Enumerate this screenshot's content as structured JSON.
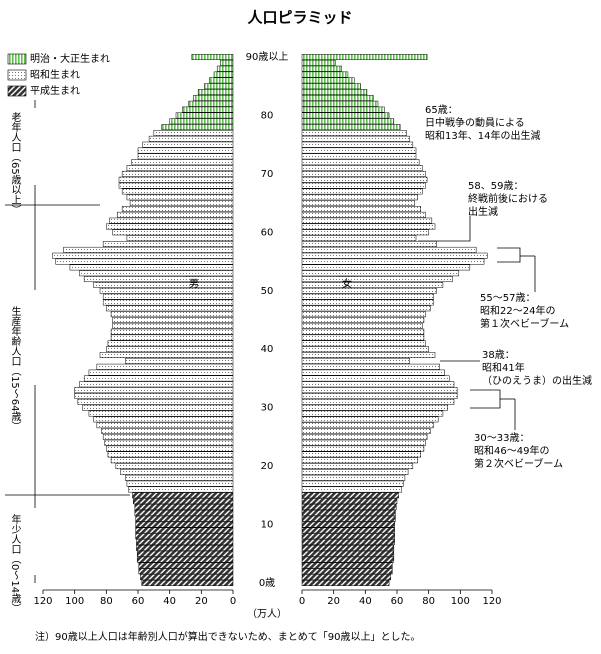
{
  "chart_data": {
    "type": "pyramid",
    "title": "人口ピラミッド",
    "categories": [
      "0歳",
      null,
      null,
      null,
      null,
      null,
      null,
      null,
      null,
      null,
      "10",
      null,
      null,
      null,
      null,
      null,
      null,
      null,
      null,
      null,
      "20",
      null,
      null,
      null,
      null,
      null,
      null,
      null,
      null,
      null,
      "30",
      null,
      null,
      null,
      null,
      null,
      null,
      null,
      null,
      null,
      "40",
      null,
      null,
      null,
      null,
      null,
      null,
      null,
      null,
      null,
      "50",
      null,
      null,
      null,
      null,
      null,
      null,
      null,
      null,
      null,
      "60",
      null,
      null,
      null,
      null,
      null,
      null,
      null,
      null,
      null,
      "70",
      null,
      null,
      null,
      null,
      null,
      null,
      null,
      null,
      null,
      "80",
      null,
      null,
      null,
      null,
      null,
      null,
      null,
      null,
      null,
      "90歳以上"
    ],
    "male_label": "男",
    "female_label": "女",
    "series": [
      {
        "name": "明治・大正生まれ",
        "color": "#5fbf4f",
        "male": [
          null,
          null,
          null,
          null,
          null,
          null,
          null,
          null,
          null,
          null,
          null,
          null,
          null,
          null,
          null,
          null,
          null,
          null,
          null,
          null,
          null,
          null,
          null,
          null,
          null,
          null,
          null,
          null,
          null,
          null,
          null,
          null,
          null,
          null,
          null,
          null,
          null,
          null,
          null,
          null,
          null,
          null,
          null,
          null,
          null,
          null,
          null,
          null,
          null,
          null,
          null,
          null,
          null,
          null,
          null,
          null,
          null,
          null,
          null,
          null,
          null,
          null,
          null,
          null,
          null,
          null,
          null,
          null,
          null,
          null,
          null,
          null,
          null,
          null,
          null,
          null,
          null,
          null,
          45,
          40,
          36,
          32,
          28,
          25,
          22,
          18,
          15,
          12,
          10,
          8,
          26
        ],
        "female": [
          null,
          null,
          null,
          null,
          null,
          null,
          null,
          null,
          null,
          null,
          null,
          null,
          null,
          null,
          null,
          null,
          null,
          null,
          null,
          null,
          null,
          null,
          null,
          null,
          null,
          null,
          null,
          null,
          null,
          null,
          null,
          null,
          null,
          null,
          null,
          null,
          null,
          null,
          null,
          null,
          null,
          null,
          null,
          null,
          null,
          null,
          null,
          null,
          null,
          null,
          null,
          null,
          null,
          null,
          null,
          null,
          null,
          null,
          null,
          null,
          null,
          null,
          null,
          null,
          null,
          null,
          null,
          null,
          null,
          null,
          null,
          null,
          null,
          null,
          null,
          null,
          null,
          null,
          62,
          58,
          55,
          52,
          48,
          45,
          41,
          37,
          33,
          29,
          25,
          21,
          79
        ]
      },
      {
        "name": "昭和生まれ",
        "color": "#ffffff",
        "male": [
          null,
          null,
          null,
          null,
          null,
          null,
          null,
          null,
          null,
          null,
          null,
          null,
          null,
          null,
          null,
          null,
          66,
          67,
          68,
          71,
          74,
          77,
          79,
          80,
          81,
          82,
          83,
          86,
          88,
          91,
          95,
          98,
          100,
          100,
          97,
          94,
          91,
          86,
          68,
          84,
          80,
          79,
          77,
          77,
          76,
          76,
          77,
          80,
          82,
          82,
          84,
          88,
          94,
          97,
          103,
          112,
          114,
          107,
          82,
          67,
          76,
          80,
          78,
          73,
          70,
          65,
          67,
          70,
          72,
          72,
          70,
          67,
          64,
          60,
          60,
          57,
          53,
          50,
          null,
          null,
          null,
          null,
          null,
          null,
          null,
          null,
          null,
          null,
          null,
          null,
          null
        ],
        "female": [
          null,
          null,
          null,
          null,
          null,
          null,
          null,
          null,
          null,
          null,
          null,
          null,
          null,
          null,
          null,
          null,
          63,
          64,
          65,
          67,
          70,
          73,
          75,
          77,
          78,
          79,
          81,
          83,
          86,
          89,
          92,
          96,
          98,
          98,
          96,
          93,
          90,
          87,
          68,
          84,
          80,
          78,
          77,
          77,
          76,
          77,
          78,
          81,
          83,
          83,
          85,
          89,
          95,
          99,
          106,
          115,
          117,
          110,
          85,
          72,
          80,
          84,
          82,
          78,
          75,
          71,
          73,
          76,
          78,
          79,
          78,
          76,
          74,
          72,
          72,
          70,
          68,
          66,
          null,
          null,
          null,
          null,
          null,
          null,
          null,
          null,
          null,
          null,
          null,
          null,
          null
        ]
      },
      {
        "name": "平成生まれ",
        "color": "#333333",
        "male": [
          57.6,
          58.5,
          59.5,
          59.5,
          60.5,
          60.5,
          61,
          61,
          61.5,
          61.5,
          61.5,
          61.5,
          62,
          62,
          63,
          63.5,
          null,
          null,
          null,
          null,
          null,
          null,
          null,
          null,
          null,
          null,
          null,
          null,
          null,
          null,
          null,
          null,
          null,
          null,
          null,
          null,
          null,
          null,
          null,
          null,
          null,
          null,
          null,
          null,
          null,
          null,
          null,
          null,
          null,
          null,
          null,
          null,
          null,
          null,
          null,
          null,
          null,
          null,
          null,
          null,
          null,
          null,
          null,
          null,
          null,
          null,
          null,
          null,
          null,
          null,
          null,
          null,
          null,
          null,
          null,
          null,
          null,
          null,
          null,
          null,
          null,
          null,
          null,
          null,
          null,
          null,
          null,
          null,
          null,
          null,
          null
        ],
        "female": [
          55,
          56,
          57,
          57,
          58,
          58,
          58,
          58.5,
          58.5,
          58.5,
          58.5,
          59,
          59,
          59.5,
          60,
          61,
          null,
          null,
          null,
          null,
          null,
          null,
          null,
          null,
          null,
          null,
          null,
          null,
          null,
          null,
          null,
          null,
          null,
          null,
          null,
          null,
          null,
          null,
          null,
          null,
          null,
          null,
          null,
          null,
          null,
          null,
          null,
          null,
          null,
          null,
          null,
          null,
          null,
          null,
          null,
          null,
          null,
          null,
          null,
          null,
          null,
          null,
          null,
          null,
          null,
          null,
          null,
          null,
          null,
          null,
          null,
          null,
          null,
          null,
          null,
          null,
          null,
          null,
          null,
          null,
          null,
          null,
          null,
          null,
          null,
          null,
          null,
          null,
          null,
          null,
          null
        ]
      }
    ],
    "xlim": [
      0,
      120
    ],
    "xticks": [
      0,
      20,
      40,
      60,
      80,
      100,
      120
    ],
    "x_unit": "（万人）",
    "groups": [
      "老年人口（65歳以上）",
      "生産年齢人口（15～64歳）",
      "年少人口（0～14歳）"
    ],
    "annotations": [
      {
        "lines": [
          "65歳：",
          "日中戦争の動員による",
          "昭和13年、14年の出生減"
        ]
      },
      {
        "lines": [
          "58、59歳：",
          "終戦前後における",
          "出生減"
        ]
      },
      {
        "lines": [
          "55～57歳：",
          "昭和22～24年の",
          "第１次ベビーブーム"
        ]
      },
      {
        "lines": [
          "38歳：",
          "昭和41年",
          "（ひのえうま）の出生減"
        ]
      },
      {
        "lines": [
          "30～33歳：",
          "昭和46～49年の",
          "第２次ベビーブーム"
        ]
      }
    ],
    "note": "注）90歳以上人口は年齢別人口が算出できないため、まとめて「90歳以上」とした。"
  }
}
